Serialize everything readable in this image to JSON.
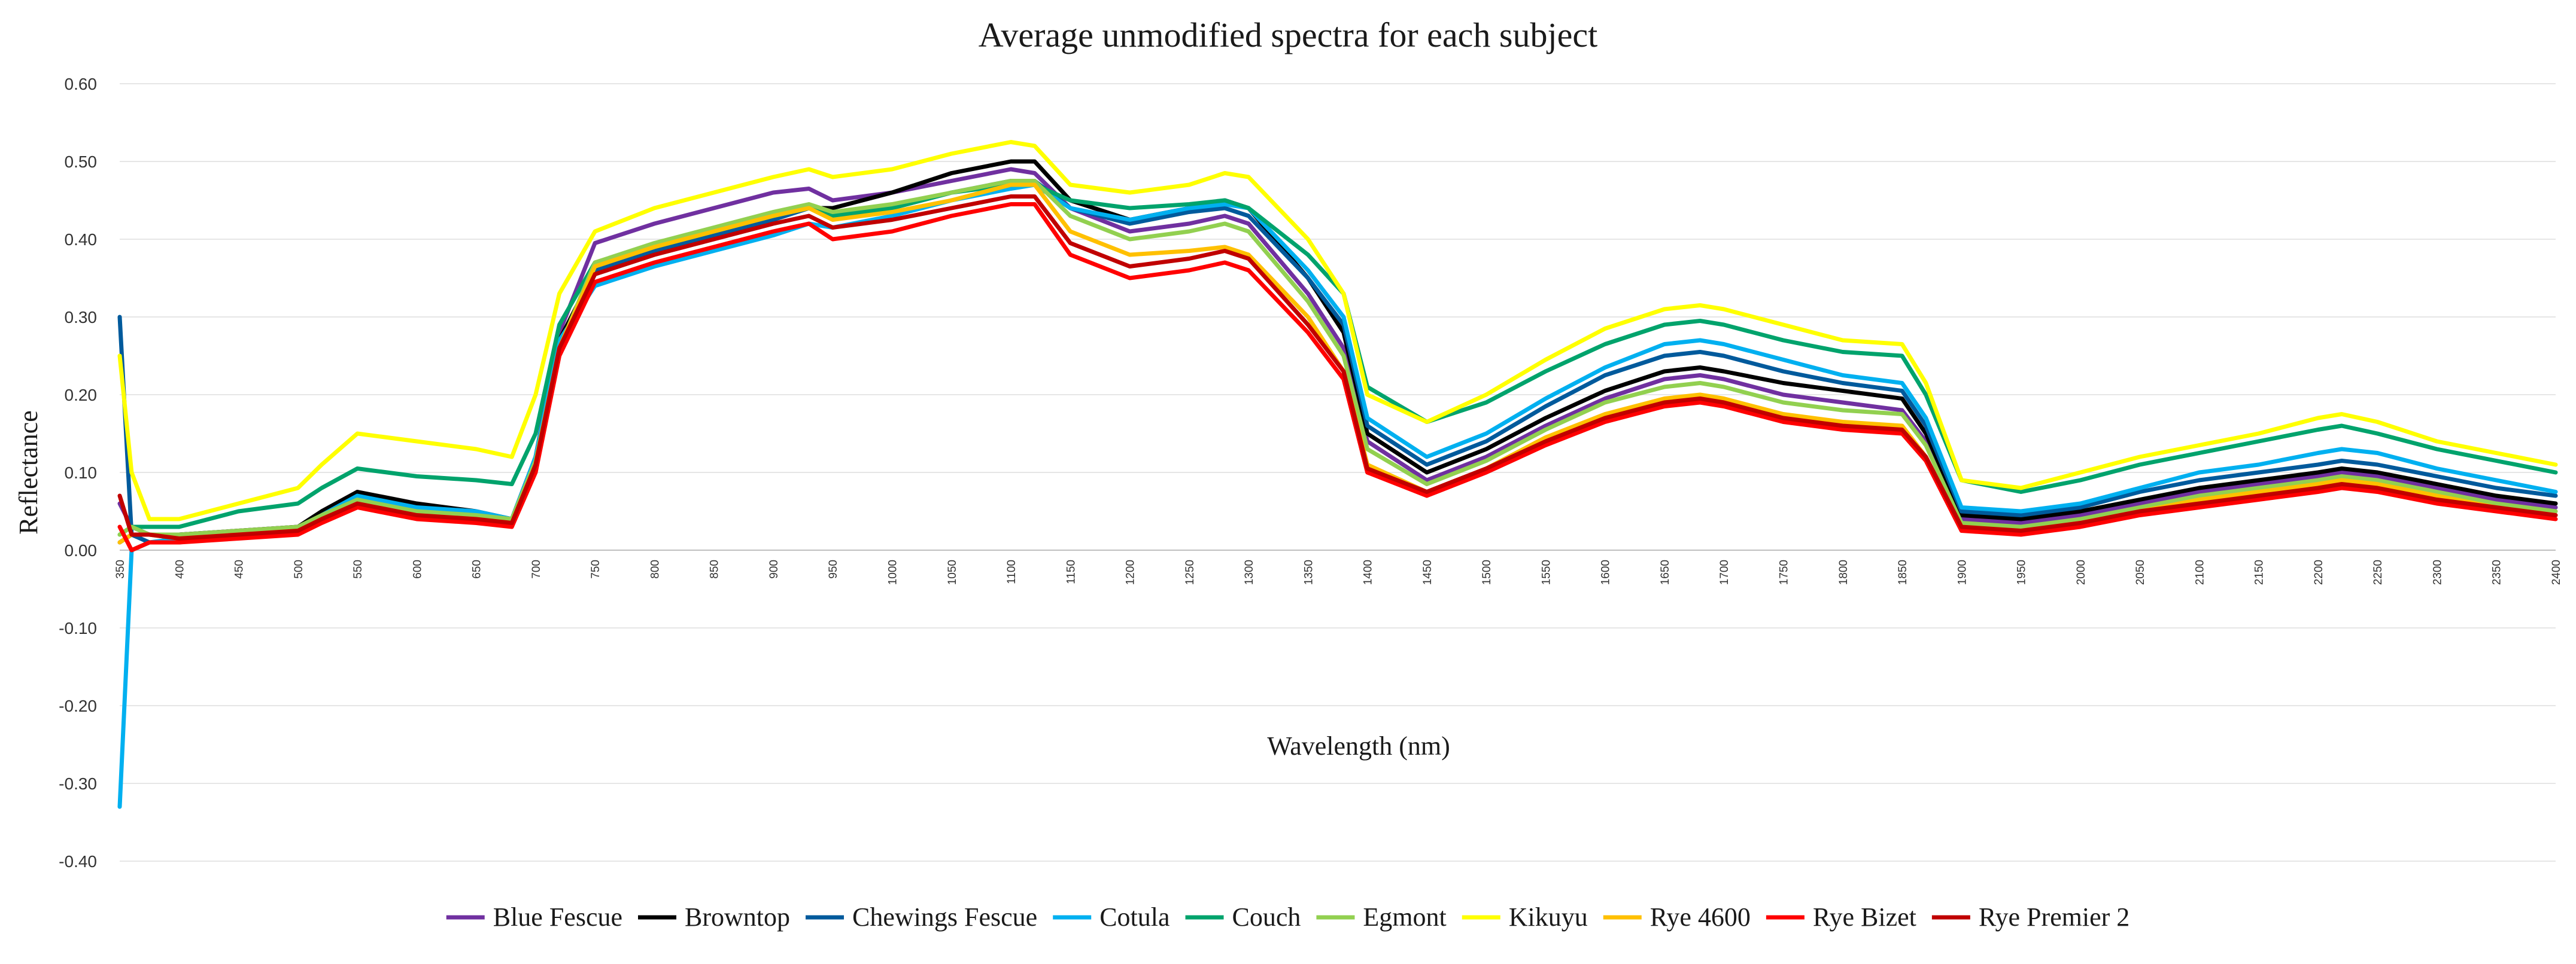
{
  "chart_data": {
    "type": "line",
    "title": "Average unmodified spectra for each subject",
    "xlabel": "Wavelength (nm)",
    "ylabel": "Reflectance",
    "xlim": [
      350,
      2400
    ],
    "ylim": [
      -0.4,
      0.6
    ],
    "y_ticks": [
      {
        "value": 0.6,
        "label": "0.60"
      },
      {
        "value": 0.5,
        "label": "0.50"
      },
      {
        "value": 0.4,
        "label": "0.40"
      },
      {
        "value": 0.3,
        "label": "0.30"
      },
      {
        "value": 0.2,
        "label": "0.20"
      },
      {
        "value": 0.1,
        "label": "0.10"
      },
      {
        "value": 0.0,
        "label": "0.00"
      },
      {
        "value": -0.1,
        "label": "-0.10"
      },
      {
        "value": -0.2,
        "label": "-0.20"
      },
      {
        "value": -0.3,
        "label": "-0.30"
      },
      {
        "value": -0.4,
        "label": "-0.40"
      }
    ],
    "x_ticks": [
      {
        "value": 350,
        "label": "350"
      },
      {
        "value": 400,
        "label": "400"
      },
      {
        "value": 450,
        "label": "450"
      },
      {
        "value": 500,
        "label": "500"
      },
      {
        "value": 550,
        "label": "550"
      },
      {
        "value": 600,
        "label": "600"
      },
      {
        "value": 650,
        "label": "650"
      },
      {
        "value": 700,
        "label": "700"
      },
      {
        "value": 750,
        "label": "750"
      },
      {
        "value": 800,
        "label": "800"
      },
      {
        "value": 850,
        "label": "850"
      },
      {
        "value": 900,
        "label": "900"
      },
      {
        "value": 950,
        "label": "950"
      },
      {
        "value": 1000,
        "label": "1000"
      },
      {
        "value": 1050,
        "label": "1050"
      },
      {
        "value": 1100,
        "label": "1100"
      },
      {
        "value": 1150,
        "label": "1150"
      },
      {
        "value": 1200,
        "label": "1200"
      },
      {
        "value": 1250,
        "label": "1250"
      },
      {
        "value": 1300,
        "label": "1300"
      },
      {
        "value": 1350,
        "label": "1350"
      },
      {
        "value": 1400,
        "label": "1400"
      },
      {
        "value": 1450,
        "label": "1450"
      },
      {
        "value": 1500,
        "label": "1500"
      },
      {
        "value": 1550,
        "label": "1550"
      },
      {
        "value": 1600,
        "label": "1600"
      },
      {
        "value": 1650,
        "label": "1650"
      },
      {
        "value": 1700,
        "label": "1700"
      },
      {
        "value": 1750,
        "label": "1750"
      },
      {
        "value": 1800,
        "label": "1800"
      },
      {
        "value": 1850,
        "label": "1850"
      },
      {
        "value": 1900,
        "label": "1900"
      },
      {
        "value": 1950,
        "label": "1950"
      },
      {
        "value": 2000,
        "label": "2000"
      },
      {
        "value": 2050,
        "label": "2050"
      },
      {
        "value": 2100,
        "label": "2100"
      },
      {
        "value": 2150,
        "label": "2150"
      },
      {
        "value": 2200,
        "label": "2200"
      },
      {
        "value": 2250,
        "label": "2250"
      },
      {
        "value": 2300,
        "label": "2300"
      },
      {
        "value": 2350,
        "label": "2350"
      },
      {
        "value": 2400,
        "label": "2400"
      }
    ],
    "grid": true,
    "legend_position": "bottom",
    "x": [
      350,
      360,
      375,
      400,
      450,
      500,
      520,
      550,
      600,
      650,
      680,
      700,
      720,
      750,
      800,
      850,
      900,
      930,
      950,
      1000,
      1050,
      1100,
      1120,
      1150,
      1200,
      1250,
      1280,
      1300,
      1350,
      1380,
      1400,
      1450,
      1500,
      1550,
      1600,
      1650,
      1680,
      1700,
      1750,
      1800,
      1850,
      1870,
      1900,
      1950,
      2000,
      2050,
      2100,
      2150,
      2200,
      2220,
      2250,
      2300,
      2350,
      2400
    ],
    "series": [
      {
        "name": "Blue Fescue",
        "color": "#7030a0",
        "values": [
          0.06,
          0.03,
          0.02,
          0.02,
          0.025,
          0.03,
          0.045,
          0.075,
          0.05,
          0.045,
          0.04,
          0.12,
          0.28,
          0.395,
          0.42,
          0.44,
          0.46,
          0.465,
          0.45,
          0.46,
          0.475,
          0.49,
          0.485,
          0.44,
          0.41,
          0.42,
          0.43,
          0.42,
          0.33,
          0.26,
          0.14,
          0.09,
          0.12,
          0.16,
          0.195,
          0.22,
          0.225,
          0.22,
          0.2,
          0.19,
          0.18,
          0.14,
          0.04,
          0.035,
          0.045,
          0.06,
          0.075,
          0.085,
          0.095,
          0.1,
          0.095,
          0.08,
          0.065,
          0.055
        ]
      },
      {
        "name": "Browntop",
        "color": "#000000",
        "values": [
          0.01,
          0.02,
          0.02,
          0.02,
          0.025,
          0.03,
          0.05,
          0.075,
          0.06,
          0.05,
          0.04,
          0.12,
          0.27,
          0.36,
          0.39,
          0.41,
          0.43,
          0.44,
          0.44,
          0.46,
          0.485,
          0.5,
          0.5,
          0.45,
          0.425,
          0.44,
          0.45,
          0.44,
          0.35,
          0.28,
          0.15,
          0.1,
          0.13,
          0.17,
          0.205,
          0.23,
          0.235,
          0.23,
          0.215,
          0.205,
          0.195,
          0.15,
          0.045,
          0.04,
          0.05,
          0.065,
          0.08,
          0.09,
          0.1,
          0.105,
          0.1,
          0.085,
          0.07,
          0.06
        ]
      },
      {
        "name": "Chewings Fescue",
        "color": "#005a9c",
        "values": [
          0.3,
          0.02,
          0.01,
          0.01,
          0.02,
          0.025,
          0.04,
          0.06,
          0.045,
          0.04,
          0.035,
          0.11,
          0.26,
          0.36,
          0.385,
          0.405,
          0.425,
          0.44,
          0.43,
          0.44,
          0.46,
          0.475,
          0.475,
          0.44,
          0.42,
          0.435,
          0.44,
          0.43,
          0.35,
          0.29,
          0.16,
          0.11,
          0.14,
          0.185,
          0.225,
          0.25,
          0.255,
          0.25,
          0.23,
          0.215,
          0.205,
          0.16,
          0.05,
          0.045,
          0.055,
          0.075,
          0.09,
          0.1,
          0.11,
          0.115,
          0.11,
          0.095,
          0.08,
          0.07
        ]
      },
      {
        "name": "Cotula",
        "color": "#00b0f0",
        "values": [
          -0.33,
          0.0,
          0.01,
          0.015,
          0.02,
          0.025,
          0.045,
          0.07,
          0.055,
          0.05,
          0.04,
          0.12,
          0.27,
          0.34,
          0.365,
          0.385,
          0.405,
          0.42,
          0.415,
          0.43,
          0.45,
          0.465,
          0.47,
          0.44,
          0.425,
          0.44,
          0.445,
          0.44,
          0.36,
          0.3,
          0.17,
          0.12,
          0.15,
          0.195,
          0.235,
          0.265,
          0.27,
          0.265,
          0.245,
          0.225,
          0.215,
          0.17,
          0.055,
          0.05,
          0.06,
          0.08,
          0.1,
          0.11,
          0.125,
          0.13,
          0.125,
          0.105,
          0.09,
          0.075
        ]
      },
      {
        "name": "Couch",
        "color": "#00a36c",
        "values": [
          0.02,
          0.03,
          0.03,
          0.03,
          0.05,
          0.06,
          0.08,
          0.105,
          0.095,
          0.09,
          0.085,
          0.15,
          0.29,
          0.37,
          0.39,
          0.41,
          0.43,
          0.44,
          0.43,
          0.44,
          0.46,
          0.47,
          0.47,
          0.45,
          0.44,
          0.445,
          0.45,
          0.44,
          0.38,
          0.33,
          0.21,
          0.165,
          0.19,
          0.23,
          0.265,
          0.29,
          0.295,
          0.29,
          0.27,
          0.255,
          0.25,
          0.2,
          0.09,
          0.075,
          0.09,
          0.11,
          0.125,
          0.14,
          0.155,
          0.16,
          0.15,
          0.13,
          0.115,
          0.1
        ]
      },
      {
        "name": "Egmont",
        "color": "#92d050",
        "values": [
          0.02,
          0.03,
          0.02,
          0.02,
          0.025,
          0.03,
          0.045,
          0.065,
          0.05,
          0.045,
          0.04,
          0.115,
          0.26,
          0.37,
          0.395,
          0.415,
          0.435,
          0.445,
          0.435,
          0.445,
          0.46,
          0.475,
          0.475,
          0.43,
          0.4,
          0.41,
          0.42,
          0.41,
          0.32,
          0.25,
          0.13,
          0.085,
          0.115,
          0.155,
          0.19,
          0.21,
          0.215,
          0.21,
          0.19,
          0.18,
          0.175,
          0.135,
          0.035,
          0.03,
          0.04,
          0.055,
          0.07,
          0.08,
          0.09,
          0.095,
          0.09,
          0.075,
          0.06,
          0.05
        ]
      },
      {
        "name": "Kikuyu",
        "color": "#ffff00",
        "values": [
          0.25,
          0.1,
          0.04,
          0.04,
          0.06,
          0.08,
          0.11,
          0.15,
          0.14,
          0.13,
          0.12,
          0.2,
          0.33,
          0.41,
          0.44,
          0.46,
          0.48,
          0.49,
          0.48,
          0.49,
          0.51,
          0.525,
          0.52,
          0.47,
          0.46,
          0.47,
          0.485,
          0.48,
          0.4,
          0.33,
          0.2,
          0.165,
          0.2,
          0.245,
          0.285,
          0.31,
          0.315,
          0.31,
          0.29,
          0.27,
          0.265,
          0.215,
          0.09,
          0.08,
          0.1,
          0.12,
          0.135,
          0.15,
          0.17,
          0.175,
          0.165,
          0.14,
          0.125,
          0.11
        ]
      },
      {
        "name": "Rye 4600",
        "color": "#ffc000",
        "values": [
          0.01,
          0.02,
          0.02,
          0.015,
          0.02,
          0.025,
          0.04,
          0.06,
          0.045,
          0.04,
          0.035,
          0.11,
          0.26,
          0.365,
          0.39,
          0.41,
          0.43,
          0.44,
          0.425,
          0.435,
          0.45,
          0.47,
          0.47,
          0.41,
          0.38,
          0.385,
          0.39,
          0.38,
          0.3,
          0.23,
          0.11,
          0.075,
          0.105,
          0.145,
          0.175,
          0.195,
          0.2,
          0.195,
          0.175,
          0.165,
          0.16,
          0.12,
          0.03,
          0.025,
          0.035,
          0.05,
          0.065,
          0.075,
          0.085,
          0.09,
          0.085,
          0.07,
          0.055,
          0.045
        ]
      },
      {
        "name": "Rye Bizet",
        "color": "#ff0000",
        "values": [
          0.03,
          0.0,
          0.01,
          0.01,
          0.015,
          0.02,
          0.035,
          0.055,
          0.04,
          0.035,
          0.03,
          0.1,
          0.25,
          0.345,
          0.37,
          0.39,
          0.41,
          0.42,
          0.4,
          0.41,
          0.43,
          0.445,
          0.445,
          0.38,
          0.35,
          0.36,
          0.37,
          0.36,
          0.28,
          0.22,
          0.1,
          0.07,
          0.1,
          0.135,
          0.165,
          0.185,
          0.19,
          0.185,
          0.165,
          0.155,
          0.15,
          0.115,
          0.025,
          0.02,
          0.03,
          0.045,
          0.055,
          0.065,
          0.075,
          0.08,
          0.075,
          0.06,
          0.05,
          0.04
        ]
      },
      {
        "name": "Rye Premier 2",
        "color": "#c00000",
        "values": [
          0.07,
          0.02,
          0.02,
          0.015,
          0.02,
          0.025,
          0.04,
          0.06,
          0.045,
          0.04,
          0.035,
          0.11,
          0.26,
          0.355,
          0.38,
          0.4,
          0.42,
          0.43,
          0.415,
          0.425,
          0.44,
          0.455,
          0.455,
          0.395,
          0.365,
          0.375,
          0.385,
          0.375,
          0.29,
          0.23,
          0.105,
          0.075,
          0.105,
          0.14,
          0.17,
          0.19,
          0.195,
          0.19,
          0.17,
          0.16,
          0.155,
          0.12,
          0.03,
          0.025,
          0.035,
          0.05,
          0.06,
          0.07,
          0.08,
          0.085,
          0.08,
          0.065,
          0.055,
          0.045
        ]
      }
    ]
  }
}
